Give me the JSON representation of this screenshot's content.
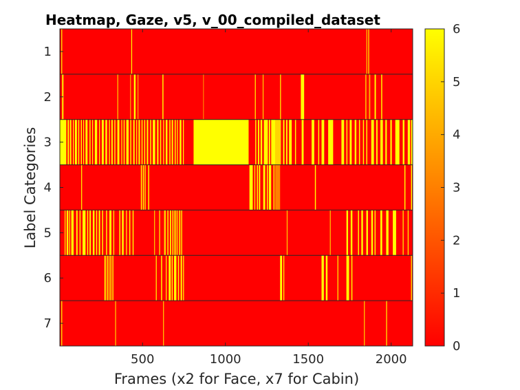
{
  "chart_data": {
    "type": "heatmap",
    "title": "Heatmap, Gaze, v5, v_00_compiled_dataset",
    "xlabel": "Frames (x2 for Face, x7 for Cabin)",
    "ylabel": "Label Categories",
    "xlim": [
      1,
      2130
    ],
    "x_ticks": [
      500,
      1000,
      1500,
      2000
    ],
    "rows": [
      1,
      2,
      3,
      4,
      5,
      6,
      7
    ],
    "colorbar": {
      "min": 0,
      "max": 6,
      "ticks": [
        0,
        1,
        2,
        3,
        4,
        5,
        6
      ],
      "colormap": "autumn"
    },
    "colors": {
      "low": "#ff0000",
      "high": "#ffff00"
    },
    "grid": false,
    "segments": [
      {
        "row": 1,
        "spans": [
          [
            10,
            14,
            6
          ],
          [
            432,
            436,
            6
          ],
          [
            1850,
            1856,
            4
          ],
          [
            1862,
            1866,
            6
          ]
        ]
      },
      {
        "row": 2,
        "spans": [
          [
            14,
            20,
            6
          ],
          [
            20,
            24,
            3
          ],
          [
            348,
            352,
            5
          ],
          [
            425,
            430,
            4
          ],
          [
            448,
            458,
            6
          ],
          [
            470,
            474,
            4
          ],
          [
            620,
            626,
            6
          ],
          [
            865,
            869,
            3
          ],
          [
            1178,
            1182,
            6
          ],
          [
            1225,
            1229,
            5
          ],
          [
            1330,
            1334,
            6
          ],
          [
            1455,
            1475,
            6
          ],
          [
            1845,
            1849,
            6
          ],
          [
            1866,
            1874,
            4
          ],
          [
            1900,
            1908,
            6
          ],
          [
            1940,
            1946,
            6
          ]
        ]
      },
      {
        "row": 3,
        "spans": [
          [
            0,
            40,
            6
          ],
          [
            48,
            56,
            6
          ],
          [
            62,
            70,
            6
          ],
          [
            80,
            84,
            6
          ],
          [
            92,
            104,
            6
          ],
          [
            112,
            118,
            6
          ],
          [
            128,
            134,
            6
          ],
          [
            142,
            146,
            6
          ],
          [
            156,
            168,
            6
          ],
          [
            180,
            186,
            6
          ],
          [
            196,
            200,
            6
          ],
          [
            212,
            226,
            6
          ],
          [
            238,
            242,
            6
          ],
          [
            254,
            266,
            6
          ],
          [
            276,
            286,
            6
          ],
          [
            298,
            302,
            6
          ],
          [
            312,
            320,
            6
          ],
          [
            330,
            336,
            6
          ],
          [
            348,
            360,
            6
          ],
          [
            372,
            376,
            6
          ],
          [
            386,
            392,
            6
          ],
          [
            402,
            416,
            6
          ],
          [
            426,
            432,
            6
          ],
          [
            444,
            452,
            6
          ],
          [
            462,
            466,
            6
          ],
          [
            476,
            484,
            6
          ],
          [
            494,
            500,
            6
          ],
          [
            510,
            516,
            6
          ],
          [
            526,
            534,
            6
          ],
          [
            546,
            552,
            6
          ],
          [
            562,
            576,
            6
          ],
          [
            588,
            596,
            6
          ],
          [
            606,
            612,
            6
          ],
          [
            624,
            630,
            5
          ],
          [
            640,
            650,
            6
          ],
          [
            662,
            668,
            6
          ],
          [
            676,
            684,
            6
          ],
          [
            694,
            700,
            6
          ],
          [
            708,
            712,
            6
          ],
          [
            724,
            734,
            6
          ],
          [
            744,
            748,
            6
          ],
          [
            808,
            1140,
            6
          ],
          [
            1180,
            1186,
            6
          ],
          [
            1196,
            1204,
            6
          ],
          [
            1212,
            1222,
            6
          ],
          [
            1232,
            1256,
            6
          ],
          [
            1262,
            1270,
            6
          ],
          [
            1276,
            1300,
            6
          ],
          [
            1300,
            1335,
            5
          ],
          [
            1348,
            1356,
            6
          ],
          [
            1366,
            1374,
            6
          ],
          [
            1384,
            1400,
            6
          ],
          [
            1420,
            1426,
            6
          ],
          [
            1460,
            1472,
            6
          ],
          [
            1520,
            1536,
            6
          ],
          [
            1560,
            1566,
            6
          ],
          [
            1580,
            1596,
            6
          ],
          [
            1620,
            1650,
            6
          ],
          [
            1700,
            1716,
            6
          ],
          [
            1730,
            1736,
            6
          ],
          [
            1750,
            1762,
            6
          ],
          [
            1780,
            1790,
            6
          ],
          [
            1806,
            1812,
            6
          ],
          [
            1830,
            1836,
            6
          ],
          [
            1850,
            1856,
            6
          ],
          [
            1880,
            1896,
            6
          ],
          [
            1910,
            1918,
            6
          ],
          [
            1935,
            1950,
            6
          ],
          [
            1965,
            1974,
            6
          ],
          [
            1995,
            2004,
            6
          ],
          [
            2025,
            2050,
            6
          ],
          [
            2070,
            2080,
            6
          ],
          [
            2100,
            2114,
            6
          ],
          [
            2120,
            2130,
            6
          ]
        ]
      },
      {
        "row": 4,
        "spans": [
          [
            130,
            134,
            6
          ],
          [
            490,
            496,
            6
          ],
          [
            502,
            508,
            6
          ],
          [
            512,
            520,
            4
          ],
          [
            534,
            540,
            6
          ],
          [
            1145,
            1165,
            6
          ],
          [
            1175,
            1180,
            6
          ],
          [
            1190,
            1196,
            6
          ],
          [
            1202,
            1210,
            6
          ],
          [
            1228,
            1240,
            6
          ],
          [
            1250,
            1256,
            6
          ],
          [
            1262,
            1276,
            6
          ],
          [
            1290,
            1296,
            6
          ],
          [
            1300,
            1330,
            3
          ],
          [
            1540,
            1546,
            6
          ],
          [
            2080,
            2086,
            6
          ],
          [
            2120,
            2126,
            6
          ]
        ]
      },
      {
        "row": 5,
        "spans": [
          [
            30,
            34,
            6
          ],
          [
            42,
            52,
            6
          ],
          [
            58,
            62,
            6
          ],
          [
            70,
            84,
            6
          ],
          [
            100,
            108,
            6
          ],
          [
            120,
            126,
            6
          ],
          [
            138,
            156,
            6
          ],
          [
            166,
            172,
            6
          ],
          [
            180,
            188,
            6
          ],
          [
            200,
            210,
            6
          ],
          [
            220,
            226,
            6
          ],
          [
            236,
            244,
            6
          ],
          [
            256,
            262,
            6
          ],
          [
            280,
            286,
            6
          ],
          [
            300,
            312,
            6
          ],
          [
            324,
            328,
            6
          ],
          [
            360,
            366,
            6
          ],
          [
            376,
            386,
            6
          ],
          [
            400,
            406,
            5
          ],
          [
            420,
            426,
            6
          ],
          [
            440,
            446,
            6
          ],
          [
            570,
            574,
            5
          ],
          [
            600,
            606,
            5
          ],
          [
            630,
            640,
            5
          ],
          [
            650,
            656,
            6
          ],
          [
            665,
            672,
            6
          ],
          [
            680,
            686,
            6
          ],
          [
            692,
            700,
            6
          ],
          [
            705,
            712,
            5
          ],
          [
            720,
            726,
            6
          ],
          [
            730,
            740,
            4
          ],
          [
            1370,
            1374,
            5
          ],
          [
            1630,
            1636,
            4
          ],
          [
            1730,
            1740,
            6
          ],
          [
            1756,
            1766,
            6
          ],
          [
            1800,
            1806,
            6
          ],
          [
            1820,
            1830,
            6
          ],
          [
            1850,
            1860,
            6
          ],
          [
            1880,
            1890,
            6
          ],
          [
            1900,
            1906,
            6
          ],
          [
            1935,
            1946,
            6
          ],
          [
            1970,
            1984,
            6
          ],
          [
            2010,
            2030,
            6
          ],
          [
            2070,
            2074,
            6
          ],
          [
            2100,
            2104,
            6
          ]
        ]
      },
      {
        "row": 6,
        "spans": [
          [
            270,
            278,
            6
          ],
          [
            284,
            290,
            6
          ],
          [
            294,
            302,
            4
          ],
          [
            306,
            312,
            6
          ],
          [
            318,
            324,
            6
          ],
          [
            580,
            586,
            5
          ],
          [
            612,
            618,
            6
          ],
          [
            640,
            646,
            5
          ],
          [
            658,
            670,
            6
          ],
          [
            676,
            682,
            6
          ],
          [
            690,
            704,
            6
          ],
          [
            714,
            720,
            6
          ],
          [
            730,
            738,
            6
          ],
          [
            744,
            750,
            5
          ],
          [
            1330,
            1342,
            6
          ],
          [
            1350,
            1354,
            6
          ],
          [
            1580,
            1594,
            6
          ],
          [
            1606,
            1616,
            6
          ],
          [
            1676,
            1680,
            6
          ],
          [
            1730,
            1746,
            6
          ],
          [
            1760,
            1766,
            6
          ],
          [
            2120,
            2124,
            6
          ]
        ]
      },
      {
        "row": 7,
        "spans": [
          [
            10,
            14,
            6
          ],
          [
            335,
            339,
            5
          ],
          [
            624,
            628,
            5
          ],
          [
            1836,
            1840,
            5
          ],
          [
            1970,
            1974,
            6
          ]
        ]
      }
    ]
  }
}
